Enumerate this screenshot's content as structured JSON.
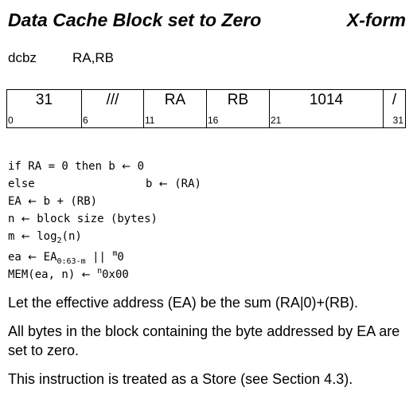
{
  "header": {
    "title": "Data Cache Block set to Zero",
    "form": "X-form"
  },
  "syntax": {
    "mnemonic": "dcbz",
    "operands": "RA,RB"
  },
  "encoding": {
    "fields": [
      {
        "value": "31",
        "start_bit": "0"
      },
      {
        "value": "///",
        "start_bit": "6"
      },
      {
        "value": "RA",
        "start_bit": "11"
      },
      {
        "value": "RB",
        "start_bit": "16"
      },
      {
        "value": "1014",
        "start_bit": "21"
      },
      {
        "value": "/",
        "start_bit": "31"
      }
    ]
  },
  "pseudocode": {
    "l1_if": "if RA = 0 then b",
    "l1_rhs": "0",
    "l2_else": "else",
    "l2_b": "b",
    "l2_rhs": "(RA)",
    "l3_lhs": "EA",
    "l3_rhs": "b + (RB)",
    "l4_lhs": "n",
    "l4_rhs": "block size (bytes)",
    "l5_lhs": "m",
    "l5_log": "log",
    "l5_sub": "2",
    "l5_arg": "(n)",
    "l6_lhs": "ea",
    "l6_ea": "EA",
    "l6_sub": "0:63-m",
    "l6_concat": "||",
    "l6_sup": "m",
    "l6_zero": "0",
    "l7_lhs": "MEM(ea, n)",
    "l7_sup": "n",
    "l7_val": "0x00",
    "arrow": "←"
  },
  "description": {
    "p1": "Let the effective address (EA) be the sum (RA|0)+(RB).",
    "p2": "All bytes in the block containing the byte addressed by EA are set to zero.",
    "p3": "This instruction is treated as a Store (see Section 4.3)."
  }
}
